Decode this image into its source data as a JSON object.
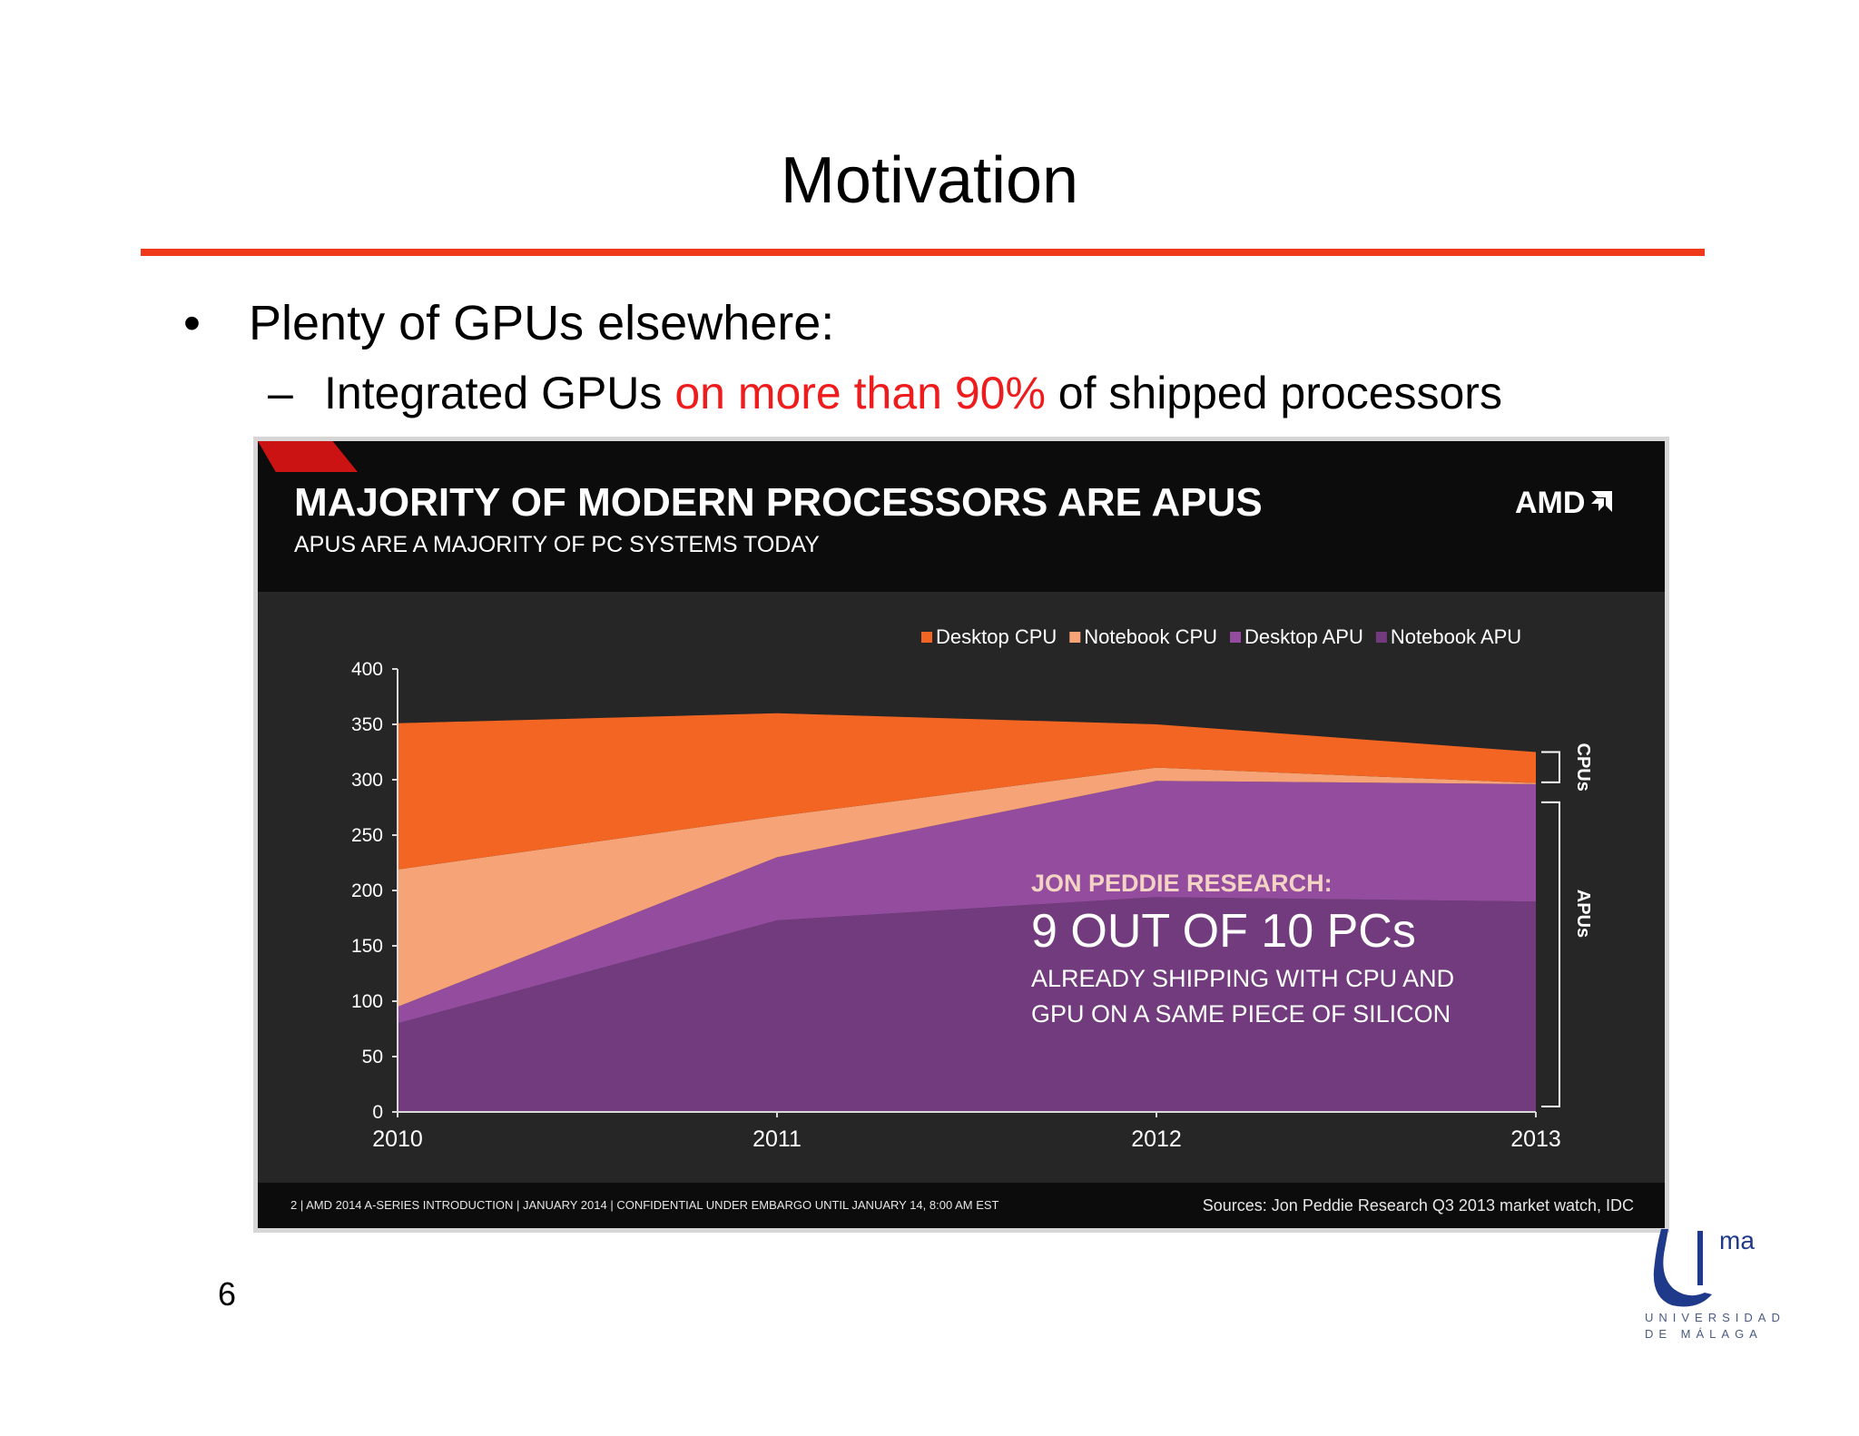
{
  "slide": {
    "title": "Motivation",
    "bullet_marker": "•",
    "bullet_text": "Plenty of GPUs elsewhere:",
    "sub_dash": "–",
    "sub_text_before": "Integrated GPUs ",
    "sub_text_highlight": "on more than 90%",
    "sub_text_after": " of shipped processors",
    "page_number": "6",
    "accent_color": "#f0391a",
    "highlight_color": "#ee1c1c"
  },
  "embed": {
    "title": "MAJORITY OF MODERN PROCESSORS ARE APUS",
    "subtitle": "APUS ARE A MAJORITY OF PC SYSTEMS TODAY",
    "logo_text": "AMD",
    "footer_left": "2   | AMD 2014 A-SERIES INTRODUCTION |   JANUARY 2014   |   CONFIDENTIAL UNDER EMBARGO UNTIL JANUARY 14, 8:00 AM EST",
    "footer_right": "Sources: Jon Peddie Research Q3 2013 market watch, IDC",
    "annotation": {
      "heading": "JON PEDDIE RESEARCH:",
      "headline": "9 OUT OF 10 PCs",
      "line1": "ALREADY SHIPPING WITH CPU AND",
      "line2": "GPU ON A SAME PIECE OF SILICON"
    },
    "bracket_labels": {
      "cpus": "CPUs",
      "apus": "APUs"
    }
  },
  "university": {
    "logo_text": "ma",
    "line1": "UNIVERSIDAD",
    "line2": "DE MÁLAGA"
  },
  "chart_data": {
    "type": "area",
    "stacked": true,
    "x": [
      "2010",
      "2011",
      "2012",
      "2013"
    ],
    "ylim": [
      0,
      400
    ],
    "yticks": [
      0,
      50,
      100,
      150,
      200,
      250,
      300,
      350,
      400
    ],
    "legend_position": "top-right",
    "series": [
      {
        "name": "Notebook APU",
        "color": "#723b7d",
        "values": [
          80,
          173,
          194,
          190
        ]
      },
      {
        "name": "Desktop APU",
        "color": "#944c9f",
        "values": [
          15,
          57,
          105,
          106
        ]
      },
      {
        "name": "Notebook CPU",
        "color": "#f5a377",
        "values": [
          124,
          37,
          12,
          1
        ]
      },
      {
        "name": "Desktop CPU",
        "color": "#f26522",
        "values": [
          132,
          93,
          39,
          28
        ]
      }
    ],
    "legend_order": [
      "Desktop CPU",
      "Notebook CPU",
      "Desktop APU",
      "Notebook APU"
    ]
  }
}
